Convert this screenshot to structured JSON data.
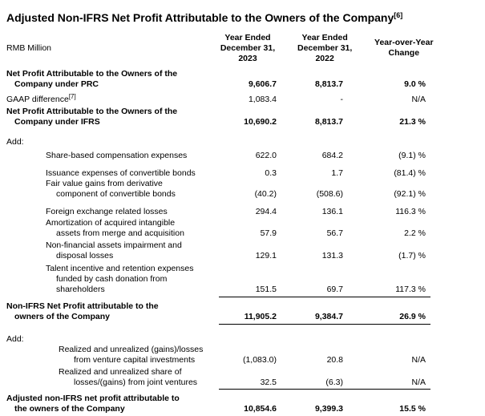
{
  "title": {
    "text": "Adjusted Non-IFRS Net Profit Attributable to the Owners of the Company",
    "superscript": "[6]"
  },
  "header": {
    "label": "RMB Million",
    "columns": [
      "Year Ended\nDecember 31,\n2023",
      "Year Ended\nDecember 31,\n2022",
      "Year-over-Year\nChange"
    ]
  },
  "rows": [
    {
      "label": "Net Profit Attributable to the Owners of the\nCompany under PRC",
      "v2023": "9,606.7",
      "v2022": "8,813.7",
      "yoy": "9.0 %"
    },
    {
      "label": "GAAP difference",
      "sup": "[7]",
      "v2023": "1,083.4",
      "v2022": "-",
      "yoy": "N/A"
    },
    {
      "label": "Net Profit Attributable to the Owners of the\nCompany under IFRS",
      "v2023": "10,690.2",
      "v2022": "8,813.7",
      "yoy": "21.3 %"
    },
    {
      "label": "Add:"
    },
    {
      "label": "Share-based compensation expenses",
      "v2023": "622.0",
      "v2022": "684.2",
      "yoy": "(9.1) %"
    },
    {
      "label": "Issuance expenses of convertible bonds",
      "v2023": "0.3",
      "v2022": "1.7",
      "yoy": "(81.4) %"
    },
    {
      "label": "Fair value gains from derivative\ncomponent of convertible bonds",
      "v2023": "(40.2)",
      "v2022": "(508.6)",
      "yoy": "(92.1) %"
    },
    {
      "label": "Foreign exchange related losses",
      "v2023": "294.4",
      "v2022": "136.1",
      "yoy": "116.3 %"
    },
    {
      "label": "Amortization of acquired intangible\nassets from merge and acquisition",
      "v2023": "57.9",
      "v2022": "56.7",
      "yoy": "2.2 %"
    },
    {
      "label": "Non-financial assets impairment and\ndisposal losses",
      "v2023": "129.1",
      "v2022": "131.3",
      "yoy": "(1.7) %"
    },
    {
      "label": "Talent incentive and retention expenses\nfunded by cash donation from\nshareholders",
      "v2023": "151.5",
      "v2022": "69.7",
      "yoy": "117.3 %"
    },
    {
      "label": "Non-IFRS Net Profit attributable to the\nowners of the Company",
      "v2023": "11,905.2",
      "v2022": "9,384.7",
      "yoy": "26.9 %"
    },
    {
      "label": "Add:"
    },
    {
      "label": "Realized and unrealized (gains)/losses\nfrom venture capital investments",
      "v2023": "(1,083.0)",
      "v2022": "20.8",
      "yoy": "N/A"
    },
    {
      "label": "Realized and unrealized share of\nlosses/(gains) from joint ventures",
      "v2023": "32.5",
      "v2022": "(6.3)",
      "yoy": "N/A"
    },
    {
      "label": "Adjusted non-IFRS net profit attributable to\nthe owners of the Company",
      "v2023": "10,854.6",
      "v2022": "9,399.3",
      "yoy": "15.5 %"
    }
  ]
}
